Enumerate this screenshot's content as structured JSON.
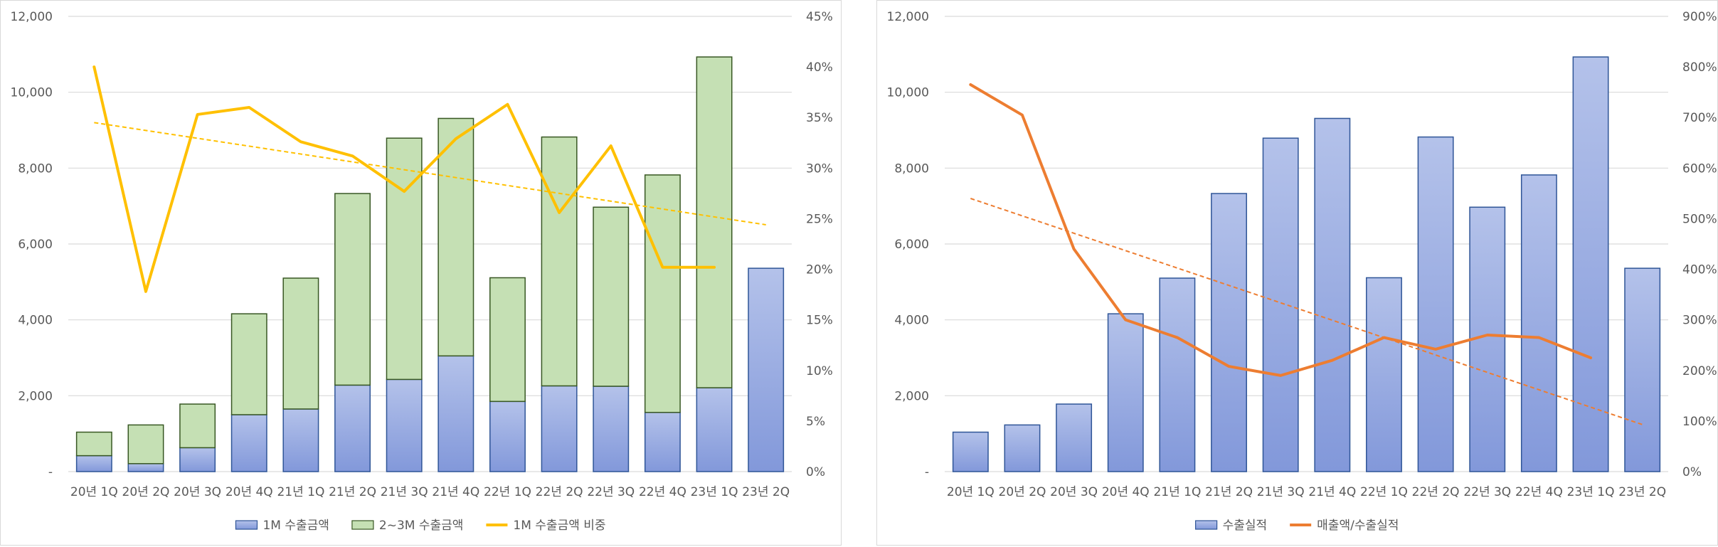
{
  "chart_data": [
    {
      "type": "bar",
      "stacked": true,
      "categories": [
        "20년 1Q",
        "20년 2Q",
        "20년 3Q",
        "20년 4Q",
        "21년 1Q",
        "21년 2Q",
        "21년 3Q",
        "21년 4Q",
        "22년 1Q",
        "22년 2Q",
        "22년 3Q",
        "22년 4Q",
        "23년 1Q",
        "23년 2Q"
      ],
      "y_ticks": [
        "-",
        "2,000",
        "4,000",
        "6,000",
        "8,000",
        "10,000",
        "12,000"
      ],
      "y2_ticks": [
        "0%",
        "5%",
        "10%",
        "15%",
        "20%",
        "25%",
        "30%",
        "35%",
        "40%",
        "45%"
      ],
      "ylim": [
        0,
        12000
      ],
      "y2lim": [
        0,
        45
      ],
      "grid": true,
      "legend_position": "bottom",
      "series": [
        {
          "name": "1M 수출금액",
          "kind": "bar",
          "color": "#8ea5e0",
          "border": "#2f5597",
          "values": [
            420,
            210,
            630,
            1500,
            1650,
            2280,
            2430,
            3050,
            1850,
            2260,
            2250,
            1560,
            2210,
            5360
          ]
        },
        {
          "name": "2~3M 수출금액",
          "kind": "bar",
          "color": "#c5e0b4",
          "border": "#385723",
          "values": [
            620,
            1020,
            1150,
            2660,
            3450,
            5050,
            6360,
            6260,
            3260,
            6560,
            4720,
            6260,
            8720,
            null
          ]
        },
        {
          "name": "1M 수출금액 비중",
          "kind": "line",
          "axis": "secondary",
          "color": "#ffc000",
          "values": [
            40.0,
            17.8,
            35.3,
            36.0,
            32.6,
            31.2,
            27.7,
            32.9,
            36.3,
            25.6,
            32.2,
            20.2,
            20.2,
            null
          ]
        }
      ],
      "trendline": {
        "series": "1M 수출금액 비중",
        "color": "#ffc000",
        "start": 34.5,
        "end": 24.4
      }
    },
    {
      "type": "bar",
      "categories": [
        "20년 1Q",
        "20년 2Q",
        "20년 3Q",
        "20년 4Q",
        "21년 1Q",
        "21년 2Q",
        "21년 3Q",
        "21년 4Q",
        "22년 1Q",
        "22년 2Q",
        "22년 3Q",
        "22년 4Q",
        "23년 1Q",
        "23년 2Q"
      ],
      "y_ticks": [
        "-",
        "2,000",
        "4,000",
        "6,000",
        "8,000",
        "10,000",
        "12,000"
      ],
      "y2_ticks": [
        "0%",
        "100%",
        "200%",
        "300%",
        "400%",
        "500%",
        "600%",
        "700%",
        "800%",
        "900%"
      ],
      "ylim": [
        0,
        12000
      ],
      "y2lim": [
        0,
        900
      ],
      "grid": true,
      "legend_position": "bottom",
      "series": [
        {
          "name": "수출실적",
          "kind": "bar",
          "color": "#8ea5e0",
          "border": "#2f5597",
          "values": [
            1040,
            1230,
            1780,
            4160,
            5100,
            7330,
            8790,
            9310,
            5110,
            8820,
            6970,
            7820,
            10930,
            5360
          ]
        },
        {
          "name": "매출액/수출실적",
          "kind": "line",
          "axis": "secondary",
          "color": "#ed7d31",
          "values": [
            765,
            705,
            440,
            300,
            265,
            208,
            190,
            220,
            265,
            242,
            270,
            265,
            225,
            null
          ]
        }
      ],
      "trendline": {
        "series": "매출액/수출실적",
        "color": "#ed7d31",
        "start": 540,
        "end": 93
      }
    }
  ]
}
